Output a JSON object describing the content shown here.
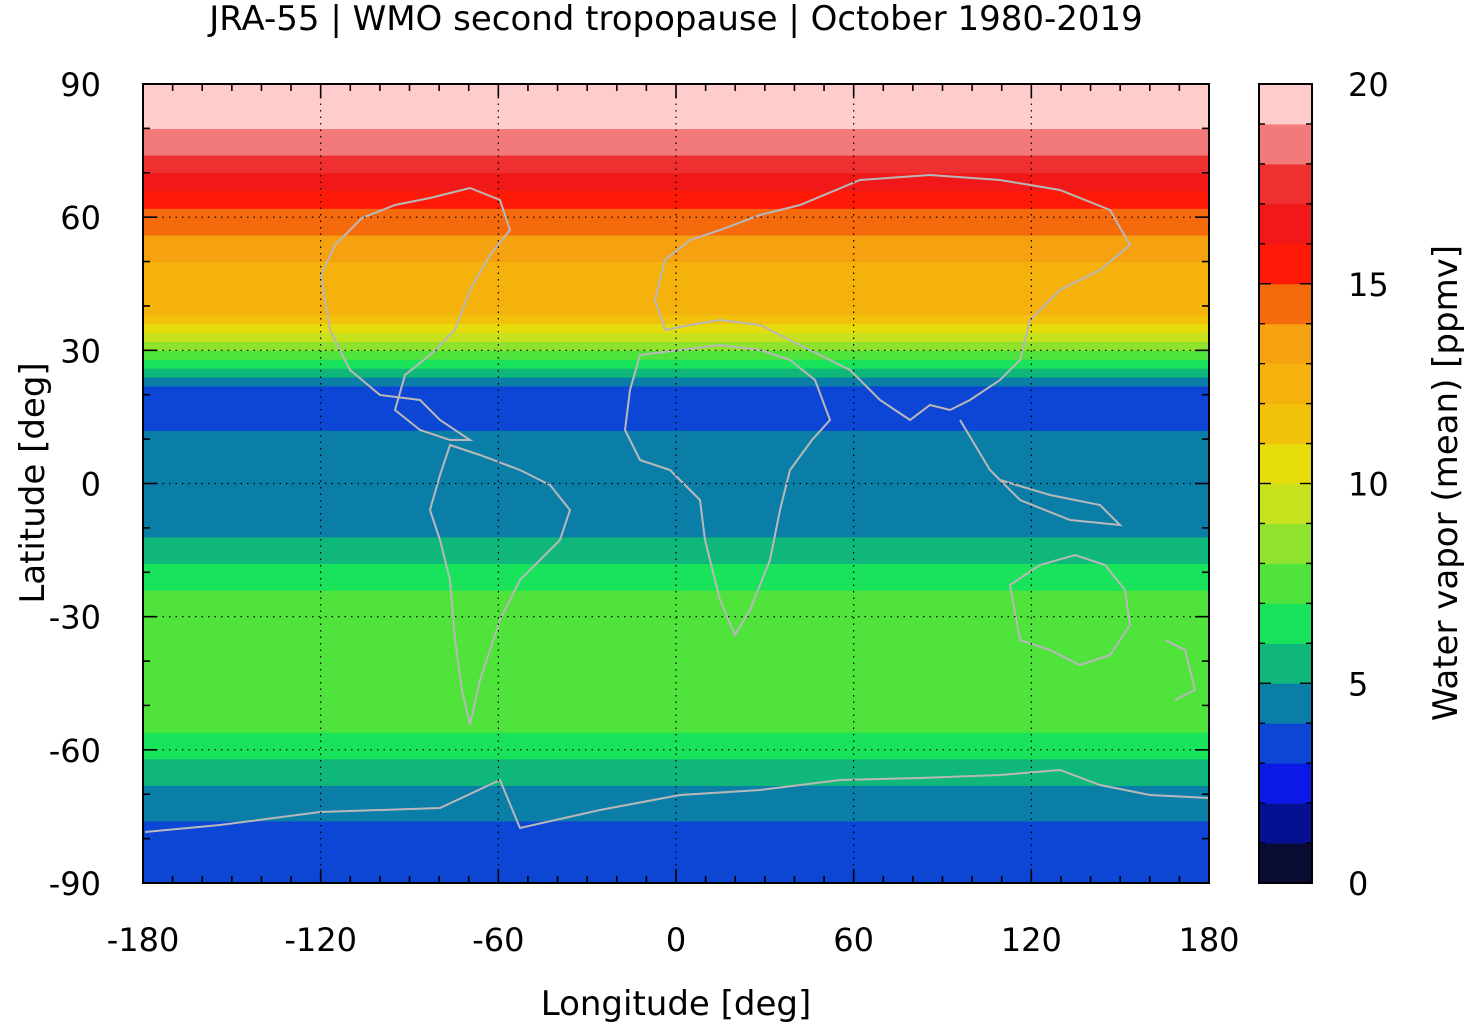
{
  "chart_data": {
    "type": "heatmap",
    "title": "JRA-55 | WMO second tropopause | October 1980-2019",
    "xlabel": "Longitude [deg]",
    "ylabel": "Latitude [deg]",
    "colorbar_label": "Water vapor (mean) [ppmv]",
    "xlim": [
      -180,
      180
    ],
    "ylim": [
      -90,
      90
    ],
    "xticks": [
      -180,
      -120,
      -60,
      0,
      60,
      120,
      180
    ],
    "yticks": [
      90,
      60,
      30,
      0,
      -30,
      -60,
      -90
    ],
    "colorbar_ticks": [
      20,
      15,
      10,
      5,
      0
    ],
    "colorbar_range": [
      0,
      20
    ],
    "grid": true,
    "colorbar_colors": [
      "#0b0c33",
      "#061192",
      "#0a19e6",
      "#0d46d4",
      "#0b7ea8",
      "#0fb77a",
      "#19e35a",
      "#4fe33c",
      "#8fe22e",
      "#c7e21d",
      "#e6dc0c",
      "#f2c20b",
      "#f5b20c",
      "#f6a10f",
      "#f46a0c",
      "#ff1a08",
      "#f01818",
      "#ee3030",
      "#f27a7a",
      "#ffcccc"
    ],
    "zonal_mean_profile": {
      "latitude": [
        -90,
        -80,
        -70,
        -60,
        -50,
        -40,
        -30,
        -20,
        -10,
        0,
        10,
        20,
        30,
        40,
        50,
        60,
        70,
        80,
        90
      ],
      "water_vapor": [
        3.0,
        3.5,
        4.8,
        6.5,
        7.5,
        7.6,
        7.6,
        6.5,
        4.5,
        4.0,
        4.2,
        3.5,
        8.0,
        12.5,
        13.0,
        14.5,
        17.0,
        19.0,
        20.0
      ]
    }
  }
}
